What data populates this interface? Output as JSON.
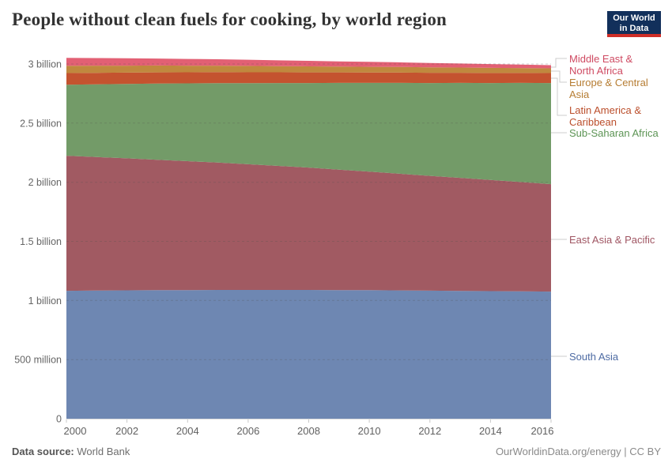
{
  "header": {
    "title": "People without clean fuels for cooking, by world region",
    "logo_line1": "Our World",
    "logo_line2": "in Data",
    "logo_bg_color": "#12305b",
    "logo_accent_color": "#cf2e27"
  },
  "footer": {
    "source_label": "Data source:",
    "source_value": "World Bank",
    "credit": "OurWorldinData.org/energy | CC BY"
  },
  "chart_data": {
    "type": "area",
    "stacked": true,
    "title": "People without clean fuels for cooking, by world region",
    "xlabel": "",
    "ylabel": "",
    "unit": "people (billions)",
    "xlim": [
      2000,
      2016
    ],
    "ylim": [
      0,
      3.1
    ],
    "grid": "horizontal-dashed",
    "legend_position": "right",
    "x": [
      2000,
      2001,
      2002,
      2003,
      2004,
      2005,
      2006,
      2007,
      2008,
      2009,
      2010,
      2011,
      2012,
      2013,
      2014,
      2015,
      2016
    ],
    "x_ticks": [
      2000,
      2002,
      2004,
      2006,
      2008,
      2010,
      2012,
      2014,
      2016
    ],
    "y_ticks": [
      {
        "value": 0,
        "label": "0"
      },
      {
        "value": 0.5,
        "label": "500 million"
      },
      {
        "value": 1,
        "label": "1 billion"
      },
      {
        "value": 1.5,
        "label": "1.5 billion"
      },
      {
        "value": 2,
        "label": "2 billion"
      },
      {
        "value": 2.5,
        "label": "2.5 billion"
      },
      {
        "value": 3,
        "label": "3 billion"
      }
    ],
    "series": [
      {
        "key": "south_asia",
        "name": "South Asia",
        "color": "#6e87b2",
        "text_color": "#4e6ba3",
        "values": [
          1.082,
          1.084,
          1.086,
          1.087,
          1.088,
          1.089,
          1.089,
          1.089,
          1.089,
          1.088,
          1.087,
          1.085,
          1.083,
          1.081,
          1.079,
          1.077,
          1.075
        ]
      },
      {
        "key": "east_asia_pacific",
        "name": "East Asia & Pacific",
        "color": "#a15a62",
        "text_color": "#a05663",
        "values": [
          1.142,
          1.129,
          1.116,
          1.103,
          1.09,
          1.077,
          1.063,
          1.049,
          1.035,
          1.019,
          1.003,
          0.987,
          0.971,
          0.956,
          0.94,
          0.925,
          0.909
        ]
      },
      {
        "key": "sub_saharan_africa",
        "name": "Sub-Saharan Africa",
        "color": "#739b68",
        "text_color": "#5c9454",
        "values": [
          0.601,
          0.615,
          0.629,
          0.644,
          0.658,
          0.672,
          0.686,
          0.701,
          0.715,
          0.733,
          0.75,
          0.768,
          0.785,
          0.803,
          0.82,
          0.838,
          0.855
        ]
      },
      {
        "key": "latin_america_caribbean",
        "name": "Latin America & Caribbean",
        "color": "#c4532f",
        "text_color": "#bb4e2b",
        "values": [
          0.098,
          0.097,
          0.096,
          0.095,
          0.094,
          0.093,
          0.092,
          0.091,
          0.09,
          0.089,
          0.088,
          0.088,
          0.087,
          0.086,
          0.085,
          0.085,
          0.084
        ]
      },
      {
        "key": "europe_central_asia",
        "name": "Europe & Central Asia",
        "color": "#c0883e",
        "text_color": "#b67d33",
        "values": [
          0.062,
          0.061,
          0.059,
          0.058,
          0.056,
          0.055,
          0.054,
          0.052,
          0.051,
          0.049,
          0.048,
          0.047,
          0.045,
          0.044,
          0.043,
          0.041,
          0.04
        ]
      },
      {
        "key": "middle_east_north_africa",
        "name": "Middle East & North Africa",
        "color": "#e26074",
        "text_color": "#cf4a62",
        "values": [
          0.067,
          0.064,
          0.062,
          0.059,
          0.057,
          0.054,
          0.052,
          0.049,
          0.047,
          0.044,
          0.042,
          0.039,
          0.037,
          0.034,
          0.032,
          0.029,
          0.027
        ]
      }
    ]
  }
}
